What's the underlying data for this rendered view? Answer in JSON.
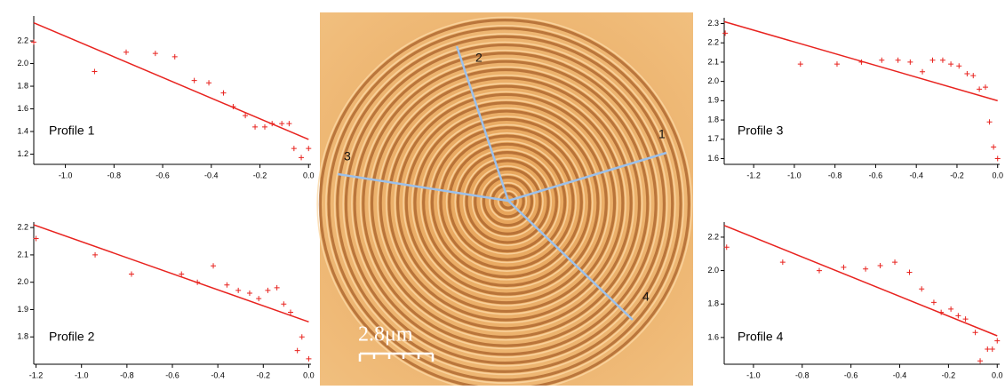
{
  "chart_data": [
    {
      "type": "scatter",
      "annotation": "Profile 1",
      "color": "#e8231f",
      "x": [
        -1.13,
        -0.88,
        -0.75,
        -0.63,
        -0.55,
        -0.47,
        -0.41,
        -0.35,
        -0.31,
        -0.26,
        -0.22,
        -0.18,
        -0.15,
        -0.11,
        -0.08,
        -0.06,
        -0.03,
        0.0
      ],
      "values": [
        2.19,
        1.93,
        2.1,
        2.09,
        2.06,
        1.85,
        1.83,
        1.74,
        1.62,
        1.54,
        1.44,
        1.44,
        1.47,
        1.47,
        1.47,
        1.25,
        1.17,
        1.25
      ],
      "fit": {
        "x": [
          -1.13,
          0.0
        ],
        "values": [
          2.36,
          1.33
        ],
        "color": "#e8231f"
      },
      "xlim": [
        -1.13,
        0.01
      ],
      "ylim": [
        1.11,
        2.42
      ],
      "xticks": [
        {
          "value": -1,
          "label": "-1.0"
        },
        -0.8,
        -0.6,
        -0.4,
        -0.2,
        {
          "value": 0,
          "label": "0.0"
        }
      ],
      "yticks": [
        1.2,
        1.4,
        1.6,
        1.8,
        {
          "value": 2,
          "label": "2.0"
        },
        2.2
      ]
    },
    {
      "type": "scatter",
      "annotation": "Profile 2",
      "color": "#e8231f",
      "x": [
        -1.2,
        -0.94,
        -0.78,
        -0.56,
        -0.49,
        -0.42,
        -0.36,
        -0.31,
        -0.26,
        -0.22,
        -0.18,
        -0.14,
        -0.11,
        -0.08,
        -0.05,
        -0.03,
        0.0
      ],
      "values": [
        2.16,
        2.1,
        2.03,
        2.03,
        2.0,
        2.06,
        1.99,
        1.97,
        1.96,
        1.94,
        1.97,
        1.98,
        1.92,
        1.89,
        1.75,
        1.8,
        1.72
      ],
      "fit": {
        "x": [
          -1.21,
          0.0
        ],
        "values": [
          2.21,
          1.855
        ],
        "color": "#e8231f"
      },
      "xlim": [
        -1.21,
        0.01
      ],
      "ylim": [
        1.7,
        2.22
      ],
      "xticks": [
        -1.2,
        {
          "value": -1,
          "label": "-1.0"
        },
        -0.8,
        -0.6,
        -0.4,
        -0.2,
        {
          "value": 0,
          "label": "0.0"
        }
      ],
      "yticks": [
        1.8,
        1.9,
        {
          "value": 2,
          "label": "2.0"
        },
        2.1,
        2.2
      ]
    },
    {
      "type": "scatter",
      "annotation": "Profile 3",
      "color": "#e8231f",
      "x": [
        -1.34,
        -0.97,
        -0.79,
        -0.67,
        -0.57,
        -0.49,
        -0.43,
        -0.37,
        -0.32,
        -0.27,
        -0.23,
        -0.19,
        -0.15,
        -0.12,
        -0.09,
        -0.06,
        -0.04,
        -0.02,
        0.0
      ],
      "values": [
        2.25,
        2.09,
        2.09,
        2.1,
        2.11,
        2.11,
        2.1,
        2.05,
        2.11,
        2.11,
        2.09,
        2.08,
        2.04,
        2.03,
        1.96,
        1.97,
        1.79,
        1.66,
        1.6
      ],
      "fit": {
        "x": [
          -1.345,
          0.0
        ],
        "values": [
          2.31,
          1.9
        ],
        "color": "#e8231f"
      },
      "xlim": [
        -1.345,
        0.01
      ],
      "ylim": [
        1.57,
        2.33
      ],
      "xticks": [
        -1.2,
        {
          "value": -1,
          "label": "-1.0"
        },
        -0.8,
        -0.6,
        -0.4,
        -0.2,
        {
          "value": 0,
          "label": "0.0"
        }
      ],
      "yticks": [
        1.6,
        1.7,
        1.8,
        1.9,
        {
          "value": 2,
          "label": "2.0"
        },
        2.1,
        2.2,
        2.3
      ]
    },
    {
      "type": "scatter",
      "annotation": "Profile 4",
      "color": "#e8231f",
      "x": [
        -1.11,
        -0.88,
        -0.73,
        -0.63,
        -0.54,
        -0.48,
        -0.42,
        -0.36,
        -0.31,
        -0.26,
        -0.23,
        -0.19,
        -0.16,
        -0.13,
        -0.09,
        -0.07,
        -0.04,
        -0.02,
        0.0
      ],
      "values": [
        2.14,
        2.05,
        2.0,
        2.02,
        2.01,
        2.03,
        2.05,
        1.99,
        1.89,
        1.81,
        1.75,
        1.77,
        1.73,
        1.71,
        1.63,
        1.46,
        1.53,
        1.53,
        1.58
      ],
      "fit": {
        "x": [
          -1.12,
          0.0
        ],
        "values": [
          2.27,
          1.61
        ],
        "color": "#e8231f"
      },
      "xlim": [
        -1.12,
        0.01
      ],
      "ylim": [
        1.44,
        2.29
      ],
      "xticks": [
        {
          "value": -1,
          "label": "-1.0"
        },
        -0.8,
        -0.6,
        -0.4,
        -0.2,
        {
          "value": 0,
          "label": "0.0"
        }
      ],
      "yticks": [
        1.6,
        1.8,
        {
          "value": 2,
          "label": "2.0"
        },
        2.2
      ]
    }
  ],
  "image": {
    "line_labels": [
      "1",
      "2",
      "3",
      "4"
    ],
    "scale_bar": "2.8μm"
  }
}
